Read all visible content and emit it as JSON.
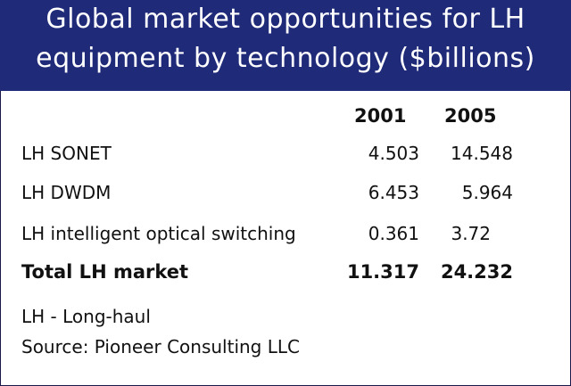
{
  "title": {
    "line1": "Global market opportunities for LH",
    "line2": "equipment by technology ($billions)"
  },
  "table": {
    "columns": [
      "2001",
      "2005"
    ],
    "rows": [
      {
        "label": "LH SONET",
        "v2001": "4.503",
        "v2005": "14.548"
      },
      {
        "label": "LH DWDM",
        "v2001": "6.453",
        "v2005": "5.964"
      },
      {
        "label": "LH intelligent optical switching",
        "v2001": "0.361",
        "v2005": "3.72"
      }
    ],
    "total": {
      "label": "Total LH market",
      "v2001": "11.317",
      "v2005": "24.232"
    }
  },
  "notes": {
    "abbrev": "LH - Long-haul",
    "source": "Source: Pioneer Consulting LLC"
  },
  "colors": {
    "header_bg": "#1f2a78",
    "header_text": "#ffffff",
    "body_bg": "#ffffff"
  }
}
